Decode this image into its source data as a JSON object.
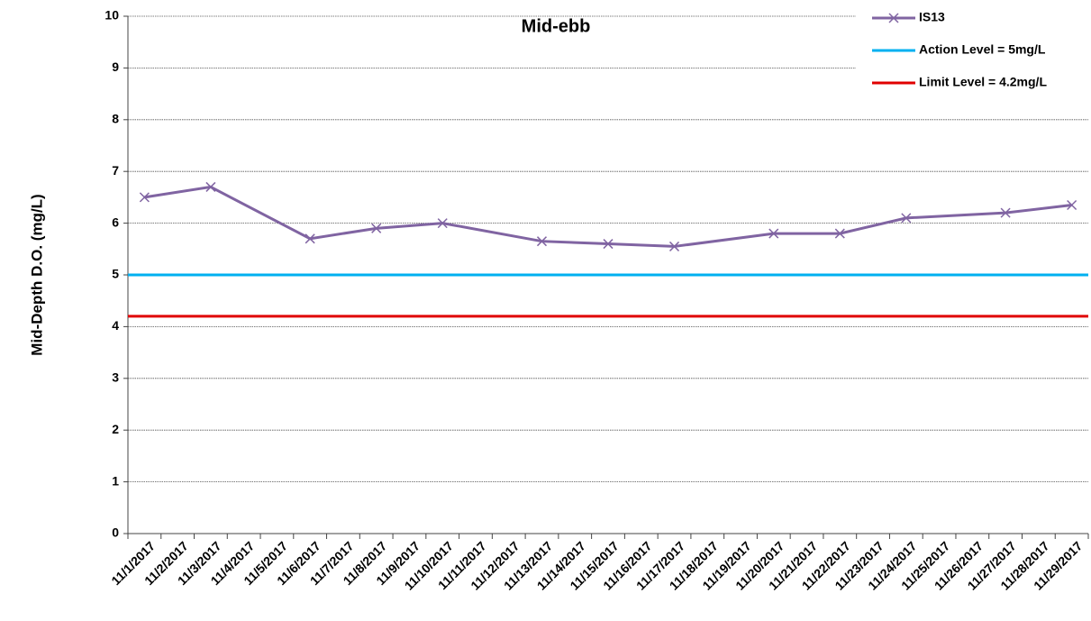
{
  "chart_data": {
    "type": "line",
    "title": "Mid-ebb",
    "y_label": "Mid-Depth D.O. (mg/L)",
    "xticks": [
      "11/1/2017",
      "11/2/2017",
      "11/3/2017",
      "11/4/2017",
      "11/5/2017",
      "11/6/2017",
      "11/7/2017",
      "11/8/2017",
      "11/9/2017",
      "11/10/2017",
      "11/11/2017",
      "11/12/2017",
      "11/13/2017",
      "11/14/2017",
      "11/15/2017",
      "11/16/2017",
      "11/17/2017",
      "11/18/2017",
      "11/19/2017",
      "11/20/2017",
      "11/21/2017",
      "11/22/2017",
      "11/23/2017",
      "11/24/2017",
      "11/25/2017",
      "11/26/2017",
      "11/27/2017",
      "11/28/2017",
      "11/29/2017"
    ],
    "x": [
      "11/1/2017",
      "11/3/2017",
      "11/6/2017",
      "11/8/2017",
      "11/10/2017",
      "11/13/2017",
      "11/15/2017",
      "11/17/2017",
      "11/20/2017",
      "11/22/2017",
      "11/24/2017",
      "11/27/2017",
      "11/29/2017"
    ],
    "series": [
      {
        "name": "IS13",
        "color": "#8064a2",
        "values": [
          6.5,
          6.7,
          5.7,
          5.9,
          6.0,
          5.65,
          5.6,
          5.55,
          5.8,
          5.8,
          6.1,
          6.2,
          6.35
        ]
      }
    ],
    "reference_lines": [
      {
        "name": "Action Level = 5mg/L",
        "value": 5,
        "color": "#00b0f0"
      },
      {
        "name": "Limit Level = 4.2mg/L",
        "value": 4.2,
        "color": "#e00000"
      }
    ],
    "ylim": [
      0,
      10
    ],
    "yticks": [
      0,
      1,
      2,
      3,
      4,
      5,
      6,
      7,
      8,
      9,
      10
    ],
    "grid": true,
    "legend": "top-right"
  }
}
